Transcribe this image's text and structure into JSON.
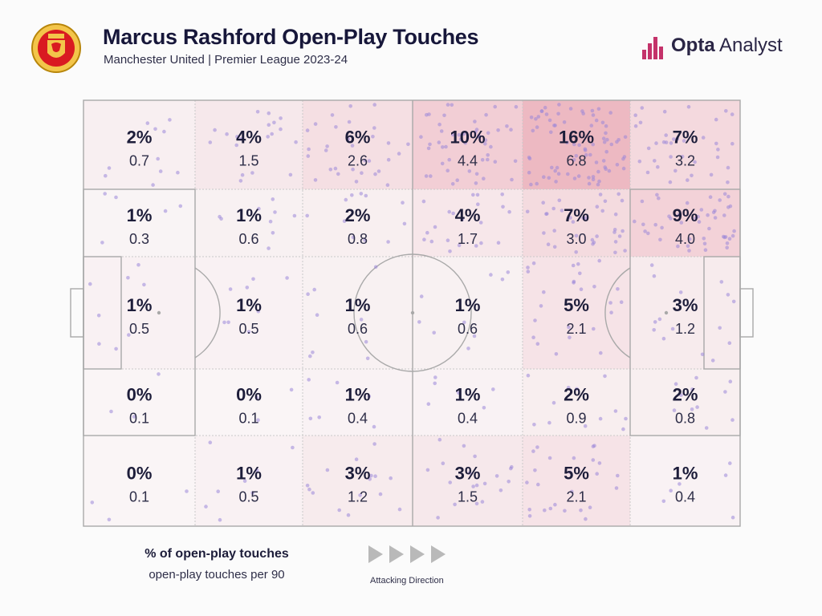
{
  "header": {
    "title": "Marcus Rashford Open-Play Touches",
    "subtitle": "Manchester United | Premier League 2023-24",
    "brand_strong": "Opta",
    "brand_light": "Analyst",
    "crest_text": "MANCHESTER UNITED"
  },
  "colors": {
    "heat_base": "#e8a0ad",
    "dot": "#9a86d8",
    "line": "#a9a9a9",
    "text": "#1d1d3a"
  },
  "chart_data": {
    "type": "heatmap",
    "title": "Marcus Rashford Open-Play Touches",
    "attacking_direction": "left-to-right",
    "rows": [
      {
        "cells": [
          {
            "pct": "2%",
            "per90": "0.7"
          },
          {
            "pct": "4%",
            "per90": "1.5"
          },
          {
            "pct": "6%",
            "per90": "2.6"
          },
          {
            "pct": "10%",
            "per90": "4.4"
          },
          {
            "pct": "16%",
            "per90": "6.8"
          },
          {
            "pct": "7%",
            "per90": "3.2"
          }
        ]
      },
      {
        "cells": [
          {
            "pct": "1%",
            "per90": "0.3"
          },
          {
            "pct": "1%",
            "per90": "0.6"
          },
          {
            "pct": "2%",
            "per90": "0.8"
          },
          {
            "pct": "4%",
            "per90": "1.7"
          },
          {
            "pct": "7%",
            "per90": "3.0"
          },
          {
            "pct": "9%",
            "per90": "4.0"
          }
        ]
      },
      {
        "cells": [
          {
            "pct": "1%",
            "per90": "0.5"
          },
          {
            "pct": "1%",
            "per90": "0.5"
          },
          {
            "pct": "1%",
            "per90": "0.6"
          },
          {
            "pct": "1%",
            "per90": "0.6"
          },
          {
            "pct": "5%",
            "per90": "2.1"
          },
          {
            "pct": "3%",
            "per90": "1.2"
          }
        ]
      },
      {
        "cells": [
          {
            "pct": "0%",
            "per90": "0.1"
          },
          {
            "pct": "0%",
            "per90": "0.1"
          },
          {
            "pct": "1%",
            "per90": "0.4"
          },
          {
            "pct": "1%",
            "per90": "0.4"
          },
          {
            "pct": "2%",
            "per90": "0.9"
          },
          {
            "pct": "2%",
            "per90": "0.8"
          }
        ]
      },
      {
        "cells": [
          {
            "pct": "0%",
            "per90": "0.1"
          },
          {
            "pct": "1%",
            "per90": "0.5"
          },
          {
            "pct": "3%",
            "per90": "1.2"
          },
          {
            "pct": "3%",
            "per90": "1.5"
          },
          {
            "pct": "5%",
            "per90": "2.1"
          },
          {
            "pct": "1%",
            "per90": "0.4"
          }
        ]
      }
    ]
  },
  "legend": {
    "main": "% of open-play touches",
    "sub": "open-play touches per 90"
  },
  "direction": {
    "label": "Attacking Direction"
  }
}
